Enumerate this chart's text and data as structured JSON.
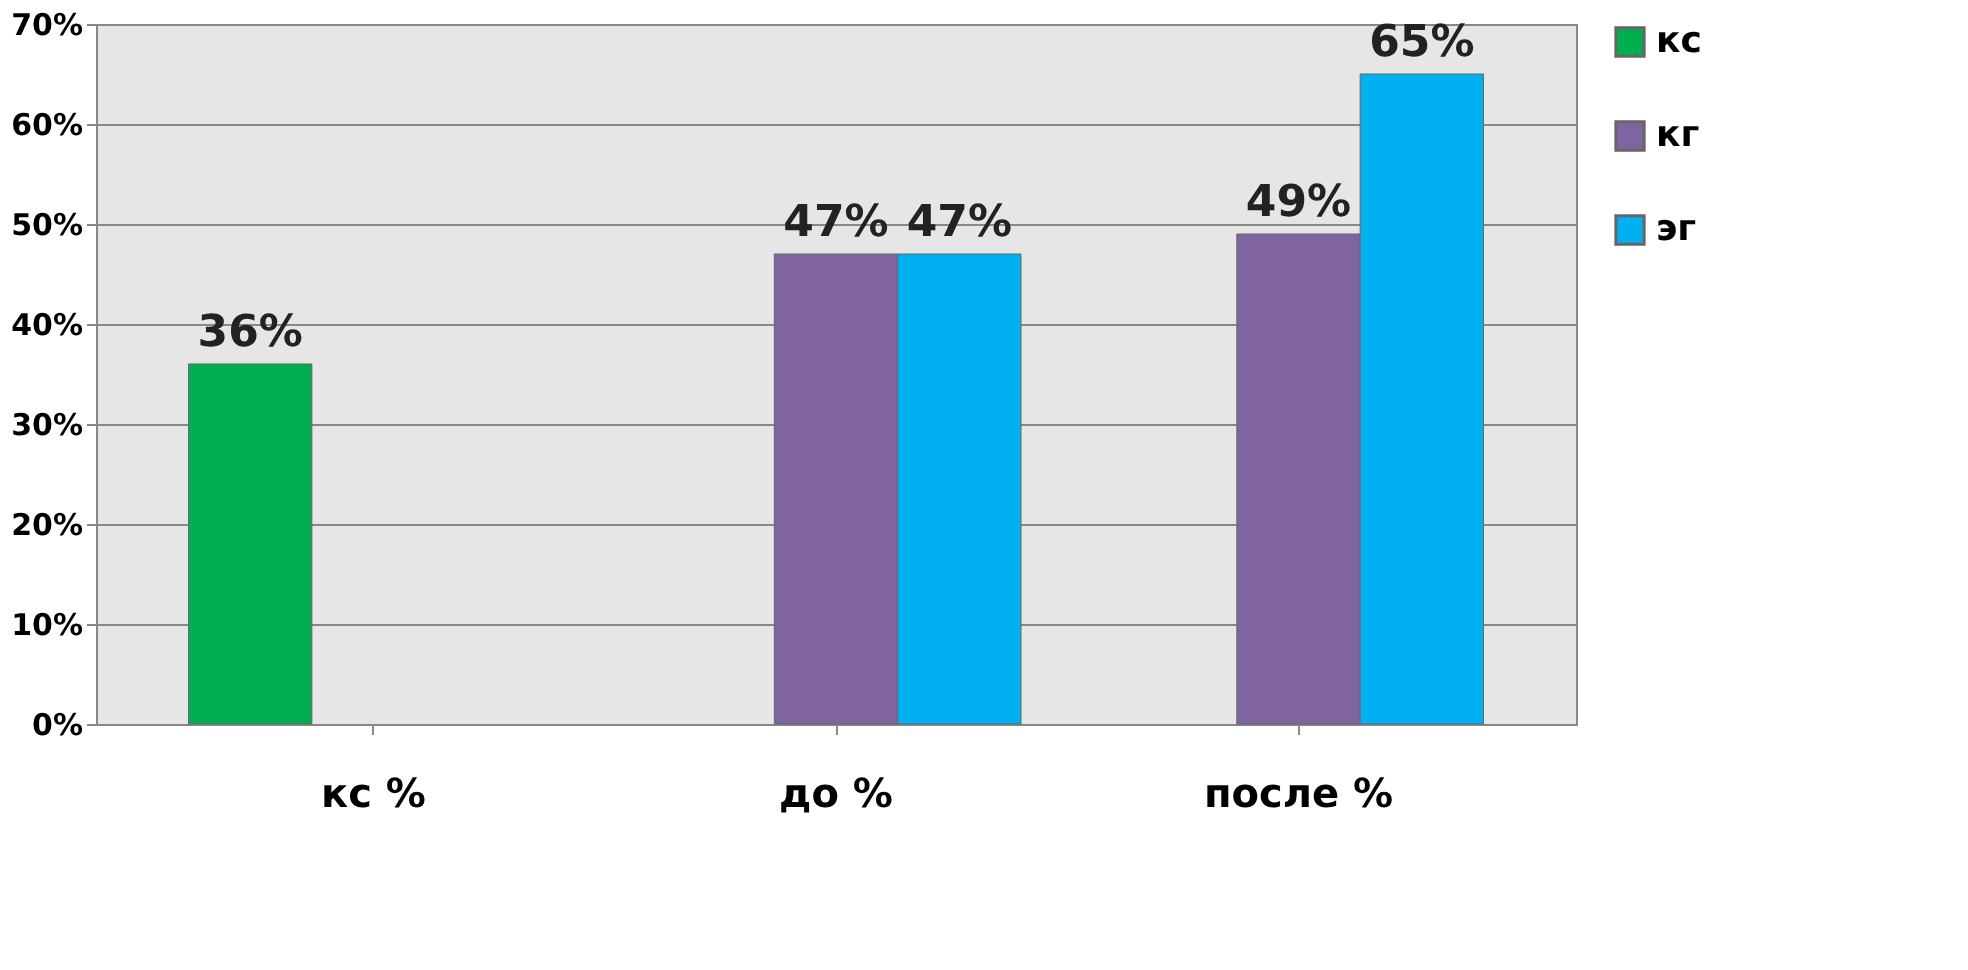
{
  "chart_data": {
    "type": "bar",
    "categories": [
      "кс %",
      "до %",
      "после %"
    ],
    "series": [
      {
        "name": "кс",
        "color": "#00b050",
        "values": [
          36,
          null,
          null
        ],
        "value_labels": [
          "36%",
          null,
          null
        ]
      },
      {
        "name": "кг",
        "color": "#8064a2",
        "values": [
          null,
          47,
          49
        ],
        "value_labels": [
          null,
          "47%",
          "49%"
        ]
      },
      {
        "name": "эг",
        "color": "#00b0f0",
        "values": [
          null,
          47,
          65
        ],
        "value_labels": [
          null,
          "47%",
          "65%"
        ]
      }
    ],
    "ylim": [
      0,
      70
    ],
    "yticks": [
      {
        "value": 0,
        "label": "0%"
      },
      {
        "value": 10,
        "label": "10%"
      },
      {
        "value": 20,
        "label": "20%"
      },
      {
        "value": 30,
        "label": "30%"
      },
      {
        "value": 40,
        "label": "40%"
      },
      {
        "value": 50,
        "label": "50%"
      },
      {
        "value": 60,
        "label": "60%"
      },
      {
        "value": 70,
        "label": "70%"
      }
    ],
    "grid": "y",
    "legend": "right"
  }
}
